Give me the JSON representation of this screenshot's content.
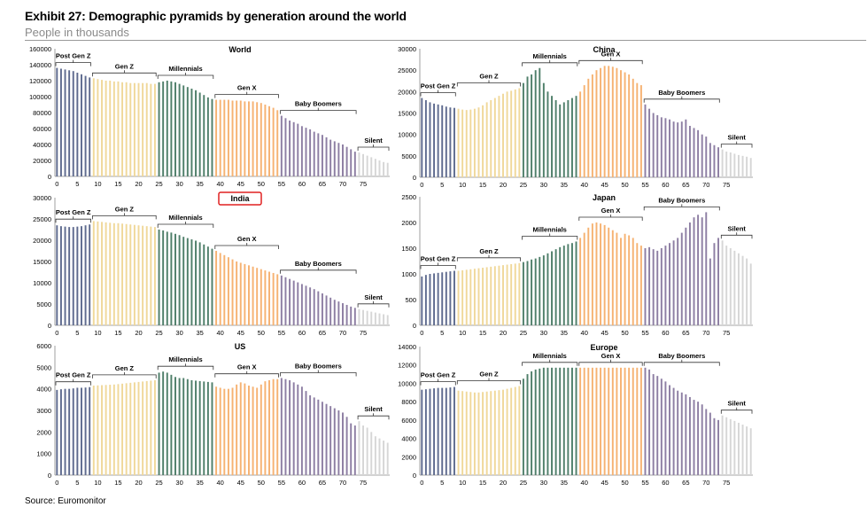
{
  "header": {
    "title": "Exhibit 27: Demographic pyramids by generation around the world",
    "subtitle": "People in thousands"
  },
  "footer": {
    "source": "Source: Euromonitor"
  },
  "colors": {
    "Post Gen Z": "#5f6b8f",
    "Gen Z": "#f0d89a",
    "Millennials": "#4f7f6a",
    "Gen X": "#f6b272",
    "Baby Boomers": "#8d7ea3",
    "Silent": "#d6d6d6",
    "highlight": "#e02020"
  },
  "chart_data": [
    {
      "type": "bar",
      "title": "World",
      "x_ticks": [
        0,
        5,
        10,
        15,
        20,
        25,
        30,
        35,
        40,
        45,
        50,
        55,
        60,
        65,
        70,
        75
      ],
      "ylim": [
        0,
        160000
      ],
      "y_ticks": [
        "0",
        "20000",
        "40000",
        "60000",
        "80000",
        "100000",
        "120000",
        "140000",
        "160000"
      ],
      "generations": [
        {
          "name": "Post Gen Z",
          "start": 0,
          "end": 8
        },
        {
          "name": "Gen Z",
          "start": 9,
          "end": 24
        },
        {
          "name": "Millennials",
          "start": 25,
          "end": 38
        },
        {
          "name": "Gen X",
          "start": 39,
          "end": 54
        },
        {
          "name": "Baby Boomers",
          "start": 55,
          "end": 73
        },
        {
          "name": "Silent",
          "start": 74,
          "end": 81
        }
      ],
      "values": [
        136000,
        135000,
        134000,
        133000,
        132000,
        130000,
        128000,
        126000,
        124000,
        123000,
        122000,
        121000,
        120000,
        120000,
        119000,
        119000,
        118000,
        118000,
        117000,
        117000,
        117000,
        117000,
        117000,
        116000,
        116000,
        118000,
        119000,
        120000,
        119000,
        118000,
        116000,
        114000,
        112000,
        110000,
        108000,
        105000,
        102000,
        99000,
        97000,
        96000,
        96000,
        96000,
        96000,
        95000,
        95000,
        95000,
        94000,
        94000,
        94000,
        93000,
        92000,
        90000,
        88000,
        86000,
        83000,
        76000,
        73000,
        70000,
        68000,
        66000,
        63000,
        61000,
        59000,
        56000,
        54000,
        52000,
        49000,
        46000,
        44000,
        42000,
        40000,
        37000,
        34000,
        31000,
        30000,
        28000,
        26000,
        24000,
        22000,
        20000,
        18000,
        17000
      ]
    },
    {
      "type": "bar",
      "title": "China",
      "x_ticks": [
        0,
        5,
        10,
        15,
        20,
        25,
        30,
        35,
        40,
        45,
        50,
        55,
        60,
        65,
        70,
        75
      ],
      "ylim": [
        0,
        30000
      ],
      "y_ticks": [
        "0",
        "5000",
        "10000",
        "15000",
        "20000",
        "25000",
        "30000"
      ],
      "generations": [
        {
          "name": "Post Gen Z",
          "start": 0,
          "end": 8
        },
        {
          "name": "Gen Z",
          "start": 9,
          "end": 24
        },
        {
          "name": "Millennials",
          "start": 25,
          "end": 38
        },
        {
          "name": "Gen X",
          "start": 39,
          "end": 54
        },
        {
          "name": "Baby Boomers",
          "start": 55,
          "end": 73
        },
        {
          "name": "Silent",
          "start": 74,
          "end": 81
        }
      ],
      "values": [
        18500,
        18000,
        17500,
        17200,
        17000,
        16800,
        16500,
        16300,
        16200,
        16000,
        15800,
        15700,
        15800,
        16000,
        16300,
        16800,
        17500,
        18000,
        18500,
        19000,
        19500,
        20000,
        20200,
        20500,
        20800,
        22000,
        23500,
        24000,
        25000,
        25500,
        22000,
        20000,
        19000,
        18000,
        17000,
        17500,
        18000,
        18500,
        19000,
        20000,
        21500,
        23000,
        24000,
        25000,
        25500,
        26000,
        26000,
        25800,
        25500,
        25000,
        24500,
        24000,
        23000,
        22000,
        21500,
        17000,
        16000,
        15000,
        14500,
        14000,
        13800,
        13500,
        13000,
        12800,
        13000,
        13500,
        12000,
        11500,
        11000,
        10000,
        9500,
        8000,
        7500,
        7000,
        6500,
        6000,
        5800,
        5500,
        5200,
        5000,
        4800,
        4500
      ]
    },
    {
      "type": "bar",
      "title": "India",
      "highlighted": true,
      "x_ticks": [
        0,
        5,
        10,
        15,
        20,
        25,
        30,
        35,
        40,
        45,
        50,
        55,
        60,
        65,
        70,
        75
      ],
      "ylim": [
        0,
        30000
      ],
      "y_ticks": [
        "0",
        "5000",
        "10000",
        "15000",
        "20000",
        "25000",
        "30000"
      ],
      "generations": [
        {
          "name": "Post Gen Z",
          "start": 0,
          "end": 8
        },
        {
          "name": "Gen Z",
          "start": 9,
          "end": 24
        },
        {
          "name": "Millennials",
          "start": 25,
          "end": 38
        },
        {
          "name": "Gen X",
          "start": 39,
          "end": 54
        },
        {
          "name": "Baby Boomers",
          "start": 55,
          "end": 73
        },
        {
          "name": "Silent",
          "start": 74,
          "end": 81
        }
      ],
      "values": [
        23500,
        23300,
        23200,
        23100,
        23100,
        23200,
        23300,
        23500,
        23700,
        24500,
        24400,
        24300,
        24200,
        24100,
        24000,
        24000,
        23900,
        23800,
        23700,
        23600,
        23500,
        23400,
        23300,
        23200,
        23100,
        22500,
        22300,
        22000,
        21800,
        21500,
        21200,
        20800,
        20500,
        20200,
        19900,
        19500,
        19000,
        18500,
        18000,
        17500,
        17000,
        16500,
        16000,
        15500,
        15000,
        14700,
        14400,
        14100,
        13800,
        13500,
        13200,
        12900,
        12600,
        12300,
        12000,
        11700,
        11300,
        10900,
        10500,
        10100,
        9700,
        9300,
        8900,
        8500,
        8000,
        7500,
        7000,
        6500,
        6000,
        5600,
        5200,
        4800,
        4400,
        4100,
        3800,
        3600,
        3400,
        3200,
        3000,
        2800,
        2600,
        2400
      ]
    },
    {
      "type": "bar",
      "title": "Japan",
      "x_ticks": [
        0,
        5,
        10,
        15,
        20,
        25,
        30,
        35,
        40,
        45,
        50,
        55,
        60,
        65,
        70,
        75
      ],
      "ylim": [
        0,
        2500
      ],
      "y_ticks": [
        "0",
        "500",
        "1000",
        "1500",
        "2000",
        "2500"
      ],
      "generations": [
        {
          "name": "Post Gen Z",
          "start": 0,
          "end": 8
        },
        {
          "name": "Gen Z",
          "start": 9,
          "end": 24
        },
        {
          "name": "Millennials",
          "start": 25,
          "end": 38
        },
        {
          "name": "Gen X",
          "start": 39,
          "end": 54
        },
        {
          "name": "Baby Boomers",
          "start": 55,
          "end": 73
        },
        {
          "name": "Silent",
          "start": 74,
          "end": 81
        }
      ],
      "values": [
        950,
        980,
        1000,
        1010,
        1020,
        1030,
        1040,
        1050,
        1060,
        1060,
        1070,
        1080,
        1090,
        1100,
        1110,
        1120,
        1130,
        1140,
        1150,
        1160,
        1170,
        1180,
        1190,
        1200,
        1210,
        1230,
        1250,
        1280,
        1300,
        1330,
        1360,
        1400,
        1440,
        1480,
        1520,
        1550,
        1580,
        1600,
        1630,
        1700,
        1800,
        1900,
        1980,
        2000,
        1980,
        1950,
        1900,
        1850,
        1800,
        1700,
        1780,
        1750,
        1700,
        1600,
        1550,
        1500,
        1520,
        1480,
        1450,
        1500,
        1550,
        1600,
        1650,
        1700,
        1800,
        1900,
        2000,
        2100,
        2150,
        2100,
        2200,
        1300,
        1600,
        1700,
        1650,
        1550,
        1500,
        1450,
        1400,
        1350,
        1300,
        1200
      ]
    },
    {
      "type": "bar",
      "title": "US",
      "x_ticks": [
        0,
        5,
        10,
        15,
        20,
        25,
        30,
        35,
        40,
        45,
        50,
        55,
        60,
        65,
        70,
        75
      ],
      "ylim": [
        0,
        6000
      ],
      "y_ticks": [
        "0",
        "1000",
        "2000",
        "3000",
        "4000",
        "5000",
        "6000"
      ],
      "generations": [
        {
          "name": "Post Gen Z",
          "start": 0,
          "end": 8
        },
        {
          "name": "Gen Z",
          "start": 9,
          "end": 24
        },
        {
          "name": "Millennials",
          "start": 25,
          "end": 38
        },
        {
          "name": "Gen X",
          "start": 39,
          "end": 54
        },
        {
          "name": "Baby Boomers",
          "start": 55,
          "end": 73
        },
        {
          "name": "Silent",
          "start": 74,
          "end": 81
        }
      ],
      "values": [
        3950,
        3980,
        4000,
        4000,
        4020,
        4050,
        4050,
        4060,
        4080,
        4150,
        4160,
        4170,
        4180,
        4190,
        4200,
        4220,
        4240,
        4260,
        4280,
        4300,
        4320,
        4340,
        4360,
        4380,
        4400,
        4750,
        4800,
        4750,
        4650,
        4550,
        4500,
        4500,
        4450,
        4400,
        4380,
        4360,
        4340,
        4320,
        4300,
        4100,
        4050,
        4000,
        4000,
        4050,
        4200,
        4300,
        4250,
        4150,
        4100,
        4050,
        4200,
        4350,
        4400,
        4450,
        4450,
        4500,
        4450,
        4400,
        4300,
        4200,
        4100,
        3900,
        3700,
        3600,
        3500,
        3400,
        3300,
        3200,
        3100,
        3000,
        2900,
        2700,
        2400,
        2300,
        2500,
        2300,
        2200,
        2000,
        1800,
        1700,
        1600,
        1500
      ]
    },
    {
      "type": "bar",
      "title": "Europe",
      "x_ticks": [
        0,
        5,
        10,
        15,
        20,
        25,
        30,
        35,
        40,
        45,
        50,
        55,
        60,
        65,
        70,
        75
      ],
      "ylim": [
        0,
        14000
      ],
      "y_ticks": [
        "0",
        "2000",
        "4000",
        "6000",
        "8000",
        "10000",
        "12000",
        "14000"
      ],
      "generations": [
        {
          "name": "Post Gen Z",
          "start": 0,
          "end": 8
        },
        {
          "name": "Gen Z",
          "start": 9,
          "end": 24
        },
        {
          "name": "Millennials",
          "start": 25,
          "end": 38
        },
        {
          "name": "Gen X",
          "start": 39,
          "end": 54
        },
        {
          "name": "Baby Boomers",
          "start": 55,
          "end": 73
        },
        {
          "name": "Silent",
          "start": 74,
          "end": 81
        }
      ],
      "values": [
        9300,
        9350,
        9400,
        9450,
        9500,
        9500,
        9500,
        9550,
        9600,
        9200,
        9150,
        9100,
        9050,
        9000,
        9000,
        9050,
        9100,
        9150,
        9200,
        9250,
        9300,
        9400,
        9500,
        9600,
        9700,
        10500,
        11000,
        11300,
        11500,
        11600,
        11700,
        11700,
        11700,
        11700,
        11700,
        11700,
        11700,
        11700,
        11700,
        11700,
        11700,
        11700,
        11700,
        11700,
        11700,
        11700,
        11700,
        11700,
        11700,
        11700,
        11700,
        11700,
        11700,
        11700,
        11700,
        11700,
        11500,
        11000,
        10800,
        10500,
        10200,
        9800,
        9500,
        9200,
        9000,
        8800,
        8500,
        8200,
        8000,
        7700,
        7200,
        6800,
        6200,
        6000,
        6500,
        6300,
        6100,
        5900,
        5700,
        5500,
        5300,
        5100
      ]
    }
  ]
}
